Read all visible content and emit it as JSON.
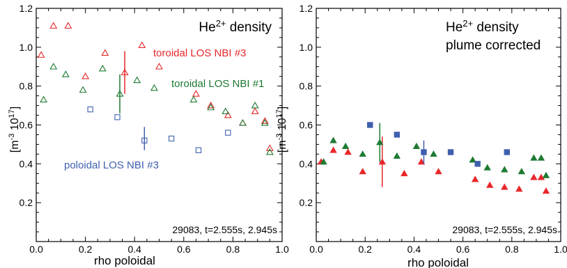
{
  "colors": {
    "red": "#e8272a",
    "green": "#1e7a32",
    "blue": "#3f5fae",
    "axis": "#000000"
  },
  "chart_data": [
    {
      "type": "scatter",
      "title": "He2+ density",
      "title_parts": {
        "base": "He",
        "sup": "2+",
        "rest": " density",
        "line2": ""
      },
      "xlabel": "rho poloidal",
      "ylabel_parts": {
        "a": "[m",
        "a_sup": "-3",
        "b": " 10",
        "b_sup": "17",
        "c": "]"
      },
      "xlim": [
        0.0,
        1.0
      ],
      "ylim": [
        0.0,
        1.2
      ],
      "xticks": [
        "0.0",
        "0.2",
        "0.4",
        "0.6",
        "0.8",
        "1.0"
      ],
      "yticks": [
        "0.2",
        "0.4",
        "0.6",
        "0.8",
        "1.0",
        "1.2"
      ],
      "shot_label": "29083, t=2.555s, 2.945s",
      "series": [
        {
          "name": "toroidal LOS NBI #3",
          "color": "red",
          "marker": "open-triangle",
          "x": [
            0.02,
            0.07,
            0.13,
            0.2,
            0.28,
            0.36,
            0.43,
            0.5,
            0.65,
            0.71,
            0.78,
            0.84,
            0.89,
            0.93,
            0.95
          ],
          "y": [
            0.96,
            1.11,
            1.11,
            0.85,
            0.97,
            0.87,
            1.01,
            0.9,
            0.76,
            0.7,
            0.65,
            0.61,
            0.67,
            0.62,
            0.48
          ],
          "errorbar": {
            "x": 0.36,
            "y": 0.87,
            "low": 0.76,
            "high": 0.98
          }
        },
        {
          "name": "toroidal LOS NBI #1",
          "color": "green",
          "marker": "open-triangle",
          "x": [
            0.03,
            0.07,
            0.12,
            0.19,
            0.27,
            0.34,
            0.41,
            0.48,
            0.64,
            0.71,
            0.77,
            0.84,
            0.89,
            0.93,
            0.95
          ],
          "y": [
            0.73,
            0.9,
            0.86,
            0.78,
            0.89,
            0.76,
            0.83,
            0.79,
            0.73,
            0.69,
            0.67,
            0.61,
            0.7,
            0.61,
            0.46
          ],
          "errorbar": {
            "x": 0.34,
            "y": 0.76,
            "low": 0.66,
            "high": 0.86
          }
        },
        {
          "name": "poloidal LOS NBI #3",
          "color": "blue",
          "marker": "open-square",
          "x": [
            0.22,
            0.33,
            0.44,
            0.55,
            0.66,
            0.78
          ],
          "y": [
            0.68,
            0.64,
            0.52,
            0.53,
            0.47,
            0.56
          ],
          "errorbar": {
            "x": 0.44,
            "y": 0.52,
            "low": 0.47,
            "high": 0.59
          }
        }
      ]
    },
    {
      "type": "scatter",
      "title": "He2+ density plume corrected",
      "title_parts": {
        "base": "He",
        "sup": "2+",
        "rest": " density",
        "line2": "plume corrected"
      },
      "xlabel": "rho poloidal",
      "ylabel_parts": {
        "a": "[m",
        "a_sup": "-3",
        "b": " 10",
        "b_sup": "17",
        "c": "]"
      },
      "xlim": [
        0.0,
        1.0
      ],
      "ylim": [
        0.0,
        1.2
      ],
      "xticks": [
        "0.0",
        "0.2",
        "0.4",
        "0.6",
        "0.8",
        "1.0"
      ],
      "yticks": [
        "0.2",
        "0.4",
        "0.6",
        "0.8",
        "1.0",
        "1.2"
      ],
      "shot_label": "29083, t=2.555s, 2.945s",
      "series": [
        {
          "color": "red",
          "marker": "filled-triangle",
          "x": [
            0.02,
            0.07,
            0.13,
            0.19,
            0.27,
            0.36,
            0.43,
            0.5,
            0.65,
            0.71,
            0.77,
            0.83,
            0.89,
            0.92,
            0.94
          ],
          "y": [
            0.41,
            0.47,
            0.46,
            0.36,
            0.41,
            0.35,
            0.41,
            0.36,
            0.32,
            0.29,
            0.28,
            0.27,
            0.33,
            0.33,
            0.26
          ],
          "errorbar": {
            "x": 0.27,
            "y": 0.41,
            "low": 0.28,
            "high": 0.54
          }
        },
        {
          "color": "green",
          "marker": "filled-triangle",
          "x": [
            0.03,
            0.07,
            0.12,
            0.19,
            0.26,
            0.33,
            0.41,
            0.48,
            0.64,
            0.7,
            0.77,
            0.84,
            0.89,
            0.92,
            0.94
          ],
          "y": [
            0.41,
            0.52,
            0.49,
            0.45,
            0.51,
            0.44,
            0.49,
            0.45,
            0.42,
            0.38,
            0.37,
            0.36,
            0.43,
            0.43,
            0.34
          ],
          "errorbar": {
            "x": 0.26,
            "y": 0.51,
            "low": 0.41,
            "high": 0.61
          }
        },
        {
          "color": "blue",
          "marker": "filled-square",
          "x": [
            0.22,
            0.33,
            0.44,
            0.55,
            0.66,
            0.78
          ],
          "y": [
            0.6,
            0.55,
            0.46,
            0.46,
            0.4,
            0.46
          ],
          "errorbar": {
            "x": 0.44,
            "y": 0.46,
            "low": 0.4,
            "high": 0.52
          }
        }
      ]
    }
  ]
}
